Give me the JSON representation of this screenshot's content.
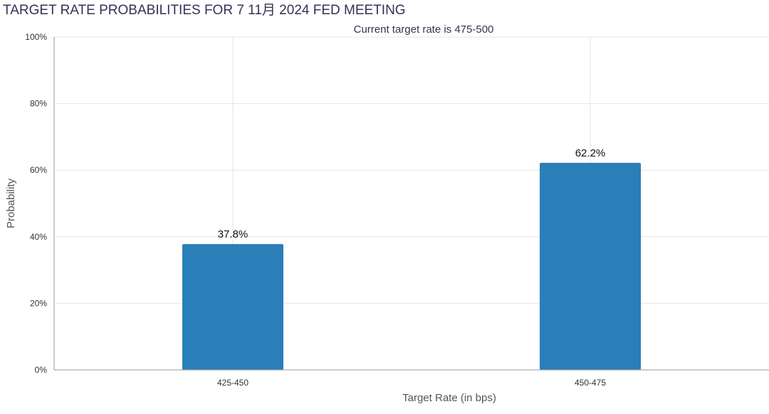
{
  "chart_data": {
    "type": "bar",
    "title": "TARGET RATE PROBABILITIES FOR 7 11月 2024 FED MEETING",
    "subtitle": "Current target rate is 475-500",
    "xlabel": "Target Rate (in bps)",
    "ylabel": "Probability",
    "categories": [
      "425-450",
      "450-475"
    ],
    "values": [
      37.8,
      62.2
    ],
    "data_labels": [
      "37.8%",
      "62.2%"
    ],
    "ylim": [
      0,
      100
    ],
    "yticks": [
      0,
      20,
      40,
      60,
      80,
      100
    ],
    "ytick_labels": [
      "0%",
      "20%",
      "40%",
      "60%",
      "80%",
      "100%"
    ],
    "grid": true,
    "legend": "none",
    "colors": {
      "bar": "#2a7fb8",
      "grid": "#e6e6e6",
      "axis": "#999999",
      "title": "#333355",
      "subtitle": "#333355",
      "text": "#333333"
    }
  }
}
